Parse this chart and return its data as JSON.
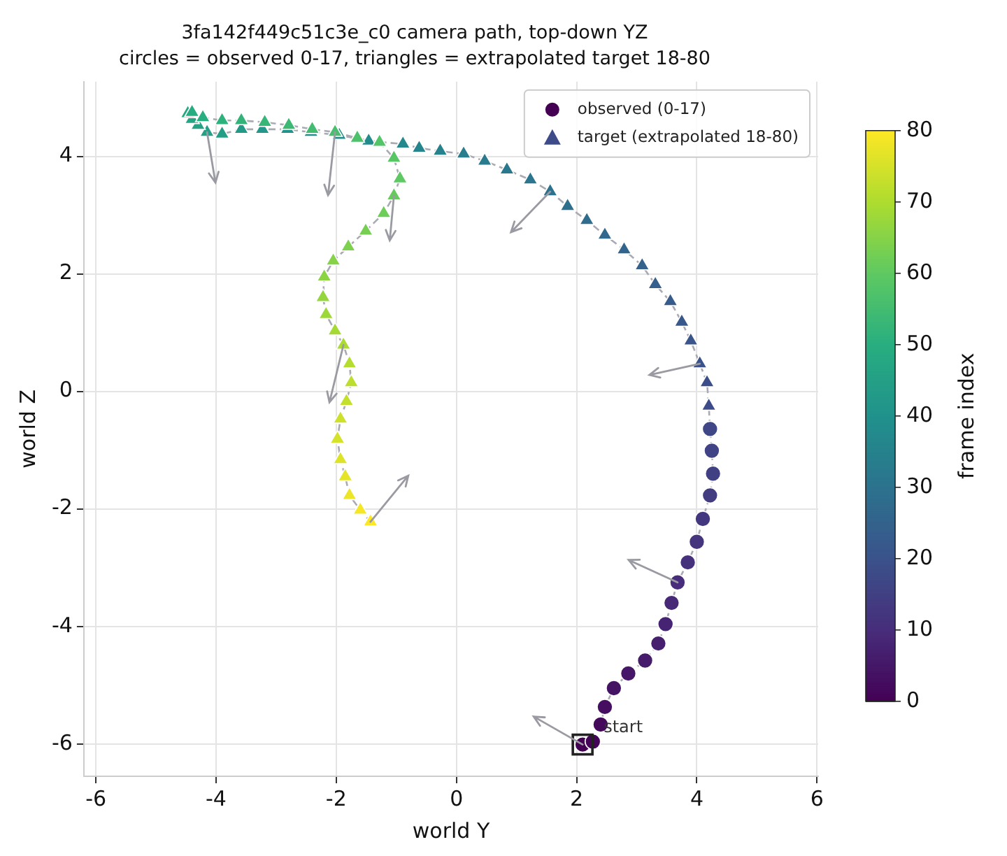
{
  "chart_data": {
    "type": "scatter",
    "title": "3fa142f449c51c3e_c0 camera path, top-down YZ",
    "subtitle": "circles = observed 0-17, triangles = extrapolated target 18-80",
    "xlabel": "world Y",
    "ylabel": "world Z",
    "clabel": "frame index",
    "xlim": [
      -6.2,
      6.02
    ],
    "ylim": [
      -6.55,
      5.27
    ],
    "xticks": [
      -6,
      -4,
      -2,
      0,
      2,
      4,
      6
    ],
    "yticks": [
      -6,
      -4,
      -2,
      0,
      2,
      4
    ],
    "clim": [
      0,
      80
    ],
    "cticks": [
      0,
      10,
      20,
      30,
      40,
      50,
      60,
      70,
      80
    ],
    "grid": true,
    "legend": "top right",
    "annotations": [
      {
        "text": "start",
        "x": 2.1,
        "y": -6.01
      }
    ],
    "series": [
      {
        "type": "line",
        "line_style": "dashed",
        "marker": "none",
        "color": "#aaaab4",
        "x": [
          2.1,
          2.27,
          2.4,
          2.47,
          2.62,
          2.86,
          3.14,
          3.36,
          3.48,
          3.58,
          3.68,
          3.85,
          4.0,
          4.1,
          4.22,
          4.27,
          4.25,
          4.22,
          4.2,
          4.17,
          4.05,
          3.9,
          3.75,
          3.56,
          3.31,
          3.09,
          2.79,
          2.47,
          2.17,
          1.85,
          1.56,
          1.23,
          0.84,
          0.47,
          0.12,
          -0.27,
          -0.62,
          -0.89,
          -1.46,
          -1.95,
          -2.42,
          -2.81,
          -3.23,
          -3.58,
          -3.9,
          -4.15,
          -4.3,
          -4.4,
          -4.47,
          -4.4,
          -4.22,
          -3.9,
          -3.58,
          -3.19,
          -2.79,
          -2.4,
          -2.02,
          -1.65,
          -1.28,
          -1.04,
          -0.94,
          -1.04,
          -1.21,
          -1.51,
          -1.8,
          -2.05,
          -2.2,
          -2.22,
          -2.17,
          -2.02,
          -1.88,
          -1.78,
          -1.75,
          -1.83,
          -1.93,
          -1.98,
          -1.93,
          -1.85,
          -1.78,
          -1.6,
          -1.43
        ],
        "values": [
          -6.01,
          -5.96,
          -5.67,
          -5.37,
          -5.05,
          -4.8,
          -4.58,
          -4.29,
          -3.96,
          -3.6,
          -3.25,
          -2.91,
          -2.56,
          -2.17,
          -1.77,
          -1.4,
          -1.01,
          -0.64,
          -0.25,
          0.15,
          0.47,
          0.86,
          1.18,
          1.53,
          1.82,
          2.14,
          2.41,
          2.66,
          2.91,
          3.15,
          3.4,
          3.6,
          3.77,
          3.92,
          4.04,
          4.09,
          4.14,
          4.21,
          4.26,
          4.36,
          4.41,
          4.46,
          4.46,
          4.46,
          4.38,
          4.41,
          4.53,
          4.63,
          4.73,
          4.75,
          4.66,
          4.61,
          4.61,
          4.58,
          4.53,
          4.46,
          4.41,
          4.31,
          4.24,
          3.97,
          3.62,
          3.33,
          3.03,
          2.73,
          2.46,
          2.22,
          1.95,
          1.6,
          1.31,
          1.03,
          0.79,
          0.47,
          0.15,
          -0.17,
          -0.47,
          -0.81,
          -1.16,
          -1.45,
          -1.77,
          -2.02,
          -2.22
        ]
      },
      {
        "name": "observed (0-17)",
        "marker": "circle",
        "colors": [
          "#440154",
          "#440558",
          "#450a5c",
          "#450e60",
          "#451364",
          "#461768",
          "#461b6b",
          "#46206f",
          "#462473",
          "#472977",
          "#472d7b",
          "#46317d",
          "#45347e",
          "#433880",
          "#423c81",
          "#414083",
          "#404385",
          "#3f4786"
        ],
        "x": [
          2.1,
          2.27,
          2.4,
          2.47,
          2.62,
          2.86,
          3.14,
          3.36,
          3.48,
          3.58,
          3.68,
          3.85,
          4.0,
          4.1,
          4.22,
          4.27,
          4.25,
          4.22
        ],
        "values": [
          -6.01,
          -5.96,
          -5.67,
          -5.37,
          -5.05,
          -4.8,
          -4.58,
          -4.29,
          -3.96,
          -3.6,
          -3.25,
          -2.91,
          -2.56,
          -2.17,
          -1.77,
          -1.4,
          -1.01,
          -0.64
        ]
      },
      {
        "name": "target (extrapolated 18-80)",
        "marker": "triangle",
        "colors": [
          "#3d4b88",
          "#3c4e89",
          "#3b528b",
          "#3a558b",
          "#38588c",
          "#375c8c",
          "#355f8c",
          "#34628d",
          "#32658d",
          "#31688d",
          "#2f6c8d",
          "#2e6f8e",
          "#2c728e",
          "#2b758e",
          "#2a788e",
          "#297b8d",
          "#287e8d",
          "#27828d",
          "#25858d",
          "#24888d",
          "#238b8c",
          "#228e8c",
          "#21918c",
          "#22948b",
          "#22978a",
          "#239a88",
          "#249d87",
          "#25a086",
          "#25a285",
          "#26a584",
          "#27a882",
          "#27ab81",
          "#28ae80",
          "#2db17d",
          "#33b37a",
          "#38b677",
          "#3eb974",
          "#43bc71",
          "#48be6e",
          "#4ec16b",
          "#53c468",
          "#59c665",
          "#5ec962",
          "#66cb5d",
          "#6ecd58",
          "#76cf53",
          "#7ed14e",
          "#86d349",
          "#8dd444",
          "#95d63f",
          "#9dd83a",
          "#a5da35",
          "#addc30",
          "#b5dd2f",
          "#bdde2e",
          "#c5df2d",
          "#cde02c",
          "#d5e22b",
          "#dde329",
          "#e5e428",
          "#ede527",
          "#f5e626",
          "#fde725"
        ],
        "x": [
          4.2,
          4.17,
          4.05,
          3.9,
          3.75,
          3.56,
          3.31,
          3.09,
          2.79,
          2.47,
          2.17,
          1.85,
          1.56,
          1.23,
          0.84,
          0.47,
          0.12,
          -0.27,
          -0.62,
          -0.89,
          -1.46,
          -1.95,
          -2.42,
          -2.81,
          -3.23,
          -3.58,
          -3.9,
          -4.15,
          -4.3,
          -4.4,
          -4.47,
          -4.4,
          -4.22,
          -3.9,
          -3.58,
          -3.19,
          -2.79,
          -2.4,
          -2.02,
          -1.65,
          -1.28,
          -1.04,
          -0.94,
          -1.04,
          -1.21,
          -1.51,
          -1.8,
          -2.05,
          -2.2,
          -2.22,
          -2.17,
          -2.02,
          -1.88,
          -1.78,
          -1.75,
          -1.83,
          -1.93,
          -1.98,
          -1.93,
          -1.85,
          -1.78,
          -1.6,
          -1.43
        ],
        "values": [
          -0.25,
          0.15,
          0.47,
          0.86,
          1.18,
          1.53,
          1.82,
          2.14,
          2.41,
          2.66,
          2.91,
          3.15,
          3.4,
          3.6,
          3.77,
          3.92,
          4.04,
          4.09,
          4.14,
          4.21,
          4.26,
          4.36,
          4.41,
          4.46,
          4.46,
          4.46,
          4.38,
          4.41,
          4.53,
          4.63,
          4.73,
          4.75,
          4.66,
          4.61,
          4.61,
          4.58,
          4.53,
          4.46,
          4.41,
          4.31,
          4.24,
          3.97,
          3.62,
          3.33,
          3.03,
          2.73,
          2.46,
          2.22,
          1.95,
          1.6,
          1.31,
          1.03,
          0.79,
          0.47,
          0.15,
          -0.17,
          -0.47,
          -0.81,
          -1.16,
          -1.45,
          -1.77,
          -2.02,
          -2.22
        ]
      }
    ]
  }
}
